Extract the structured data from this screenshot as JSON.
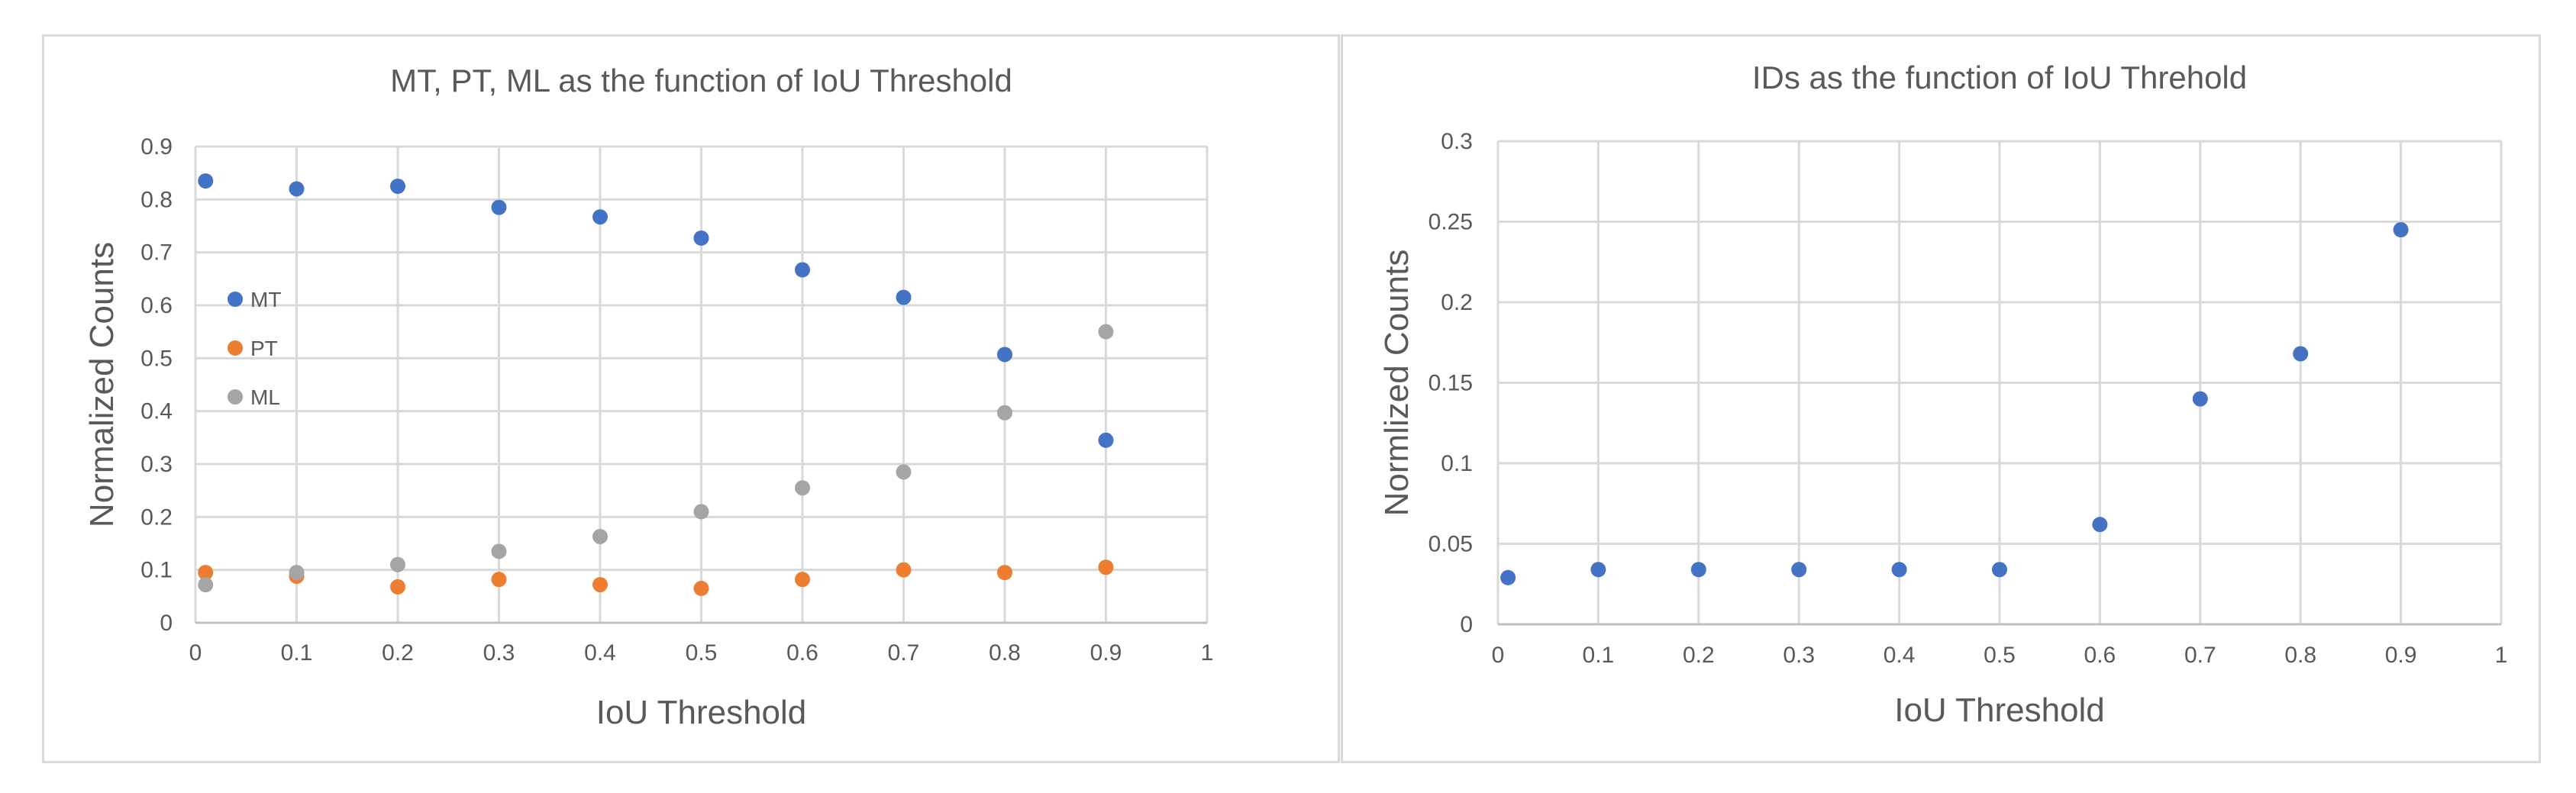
{
  "chart_data": [
    {
      "type": "scatter",
      "title": "MT, PT, ML as the function of IoU Threshold",
      "xlabel": "IoU Threshold",
      "ylabel": "Normalized Counts",
      "xlim": [
        0,
        1
      ],
      "ylim": [
        0,
        0.9
      ],
      "xticks": [
        "0",
        "0.1",
        "0.2",
        "0.3",
        "0.4",
        "0.5",
        "0.6",
        "0.7",
        "0.8",
        "0.9",
        "1"
      ],
      "yticks": [
        "0",
        "0.1",
        "0.2",
        "0.3",
        "0.4",
        "0.5",
        "0.6",
        "0.7",
        "0.8",
        "0.9"
      ],
      "grid": true,
      "legend_position": "left",
      "x": [
        0.01,
        0.1,
        0.2,
        0.3,
        0.4,
        0.5,
        0.6,
        0.7,
        0.8,
        0.9
      ],
      "series": [
        {
          "name": "MT",
          "color": "#4472c4",
          "values": [
            0.835,
            0.82,
            0.825,
            0.785,
            0.767,
            0.727,
            0.667,
            0.615,
            0.507,
            0.345
          ]
        },
        {
          "name": "PT",
          "color": "#ed7d31",
          "values": [
            0.095,
            0.088,
            0.068,
            0.082,
            0.072,
            0.065,
            0.082,
            0.1,
            0.095,
            0.105
          ]
        },
        {
          "name": "ML",
          "color": "#a5a5a5",
          "values": [
            0.072,
            0.095,
            0.11,
            0.135,
            0.163,
            0.21,
            0.255,
            0.285,
            0.397,
            0.55
          ]
        }
      ]
    },
    {
      "type": "scatter",
      "title": "IDs as the function of IoU Threhold",
      "xlabel": "IoU Threshold",
      "ylabel": "Normlized Counts",
      "xlim": [
        0,
        1
      ],
      "ylim": [
        0,
        0.3
      ],
      "xticks": [
        "0",
        "0.1",
        "0.2",
        "0.3",
        "0.4",
        "0.5",
        "0.6",
        "0.7",
        "0.8",
        "0.9",
        "1"
      ],
      "yticks": [
        "0",
        "0.05",
        "0.1",
        "0.15",
        "0.2",
        "0.25",
        "0.3"
      ],
      "grid": true,
      "x": [
        0.01,
        0.1,
        0.2,
        0.3,
        0.4,
        0.5,
        0.6,
        0.7,
        0.8,
        0.9
      ],
      "series": [
        {
          "color": "#4472c4",
          "values": [
            0.029,
            0.034,
            0.034,
            0.034,
            0.034,
            0.034,
            0.062,
            0.14,
            0.168,
            0.245
          ]
        }
      ]
    }
  ]
}
